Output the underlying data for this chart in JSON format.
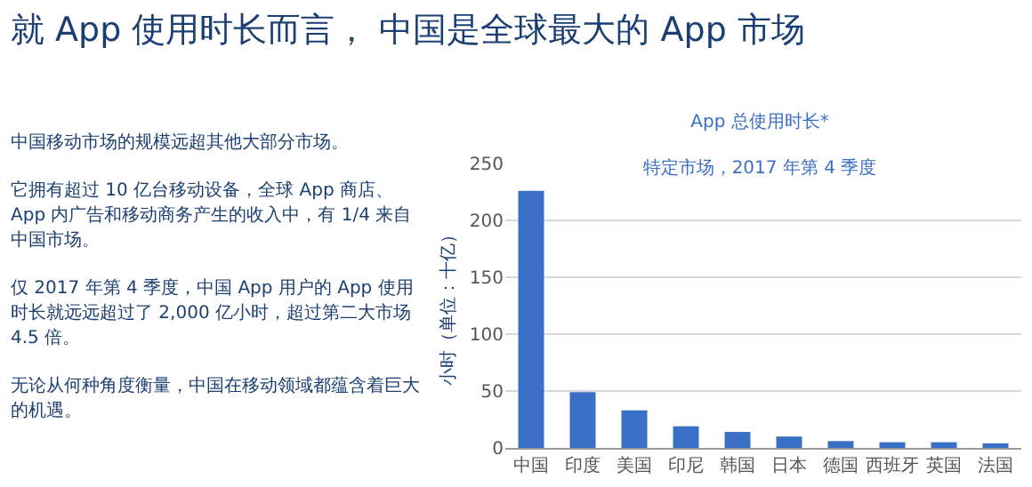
{
  "chart_data": [
    {
      "type": "other",
      "title": "就 App 使用时长而言， 中国是全球最大的 App 市场",
      "annotations": [
        "中国移动市场的规模远超其他大部分市场。",
        "它拥有超过 10 亿台移动设备，全球 App 商店、App 内广告和移动商务产生的收入中，有 1/4 来自中国市场。",
        "仅 2017 年第 4 季度，中国 App 用户的 App 使用时长就远远超过了 2,000 亿小时，超过第二大市场 4.5 倍。",
        "无论从何种角度衡量，中国在移动领域都蕴含着巨大的机遇。"
      ]
    },
    {
      "type": "bar",
      "title": "App 总使用时长*",
      "subtitle": "特定市场，2017 年第 4 季度",
      "ylabel": "小时（单位：十亿）",
      "categories": [
        "中国",
        "印度",
        "美国",
        "印尼",
        "韩国",
        "日本",
        "德国",
        "西班牙",
        "英国",
        "法国"
      ],
      "values": [
        226,
        49,
        33,
        19,
        14,
        10,
        6,
        5,
        5,
        4
      ],
      "color": "#3a6fc6",
      "ylim": [
        0,
        250
      ],
      "yticks": [
        0,
        50,
        100,
        150,
        200,
        250
      ],
      "grid": "y"
    }
  ]
}
